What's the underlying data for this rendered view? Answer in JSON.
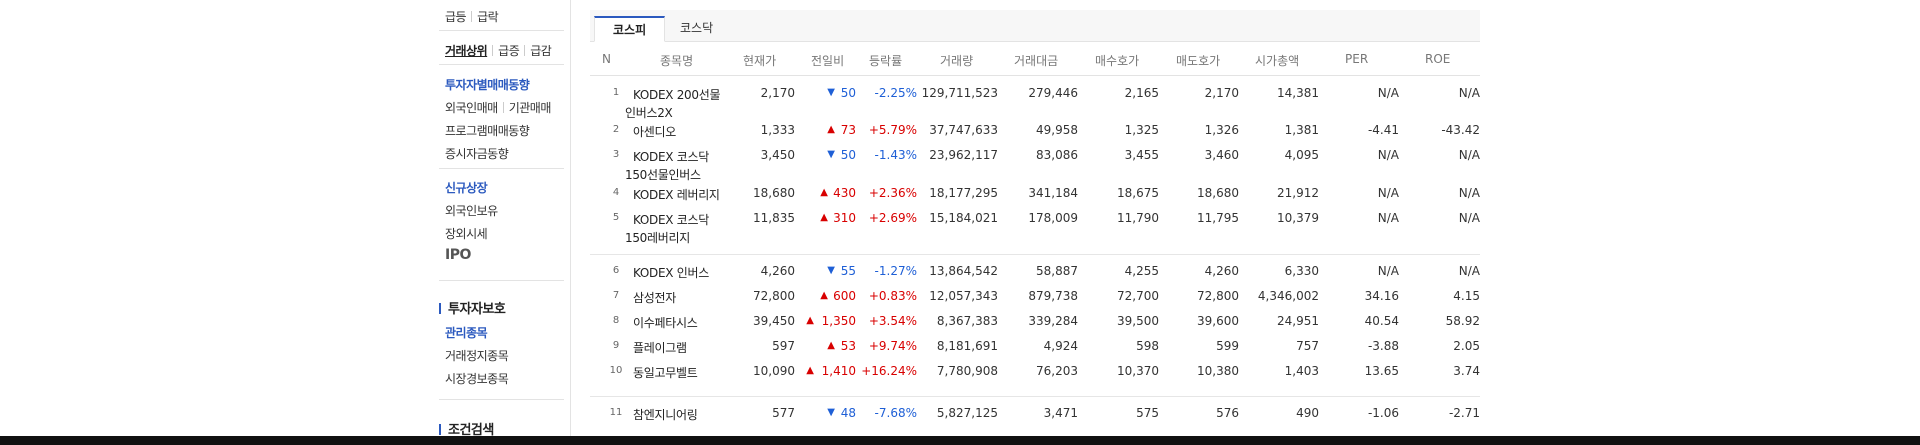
{
  "sidebar": {
    "row1": [
      "급등",
      "급락"
    ],
    "row2": [
      "거래상위",
      "급증",
      "급감"
    ],
    "investor_trend": "투자자별매매동향",
    "row4": [
      "외국인매매",
      "기관매매"
    ],
    "program_trend": "프로그램매매동향",
    "fund_trend": "증시자금동향",
    "new_listing": "신규상장",
    "foreign_holding": "외국인보유",
    "otc": "장외시세",
    "ipo": "IPO",
    "investor_protection": "투자자보호",
    "managed": "관리종목",
    "halted": "거래정지종목",
    "warning": "시장경보종목",
    "condition_search": "조건검색"
  },
  "tabs": [
    "코스피",
    "코스닥"
  ],
  "columns": [
    "N",
    "종목명",
    "현재가",
    "전일비",
    "등락률",
    "거래량",
    "거래대금",
    "매수호가",
    "매도호가",
    "시가총액",
    "PER",
    "ROE"
  ],
  "rows": [
    {
      "n": "1",
      "name": [
        "KODEX 200선물",
        "인버스2X"
      ],
      "price": "2,170",
      "dir": "down",
      "arrow": "▼",
      "change": "50",
      "rate": "-2.25%",
      "volume": "129,711,523",
      "amount": "279,446",
      "bid": "2,165",
      "ask": "2,170",
      "cap": "14,381",
      "per": "N/A",
      "roe": "N/A"
    },
    {
      "n": "2",
      "name": [
        "아센디오"
      ],
      "price": "1,333",
      "dir": "up",
      "arrow": "▲",
      "change": "73",
      "rate": "+5.79%",
      "volume": "37,747,633",
      "amount": "49,958",
      "bid": "1,325",
      "ask": "1,326",
      "cap": "1,381",
      "per": "-4.41",
      "roe": "-43.42"
    },
    {
      "n": "3",
      "name": [
        "KODEX 코스닥",
        "150선물인버스"
      ],
      "price": "3,450",
      "dir": "down",
      "arrow": "▼",
      "change": "50",
      "rate": "-1.43%",
      "volume": "23,962,117",
      "amount": "83,086",
      "bid": "3,455",
      "ask": "3,460",
      "cap": "4,095",
      "per": "N/A",
      "roe": "N/A"
    },
    {
      "n": "4",
      "name": [
        "KODEX 레버리지"
      ],
      "price": "18,680",
      "dir": "up",
      "arrow": "▲",
      "change": "430",
      "rate": "+2.36%",
      "volume": "18,177,295",
      "amount": "341,184",
      "bid": "18,675",
      "ask": "18,680",
      "cap": "21,912",
      "per": "N/A",
      "roe": "N/A"
    },
    {
      "n": "5",
      "name": [
        "KODEX 코스닥",
        "150레버리지"
      ],
      "price": "11,835",
      "dir": "up",
      "arrow": "▲",
      "change": "310",
      "rate": "+2.69%",
      "volume": "15,184,021",
      "amount": "178,009",
      "bid": "11,790",
      "ask": "11,795",
      "cap": "10,379",
      "per": "N/A",
      "roe": "N/A"
    },
    {
      "n": "6",
      "name": [
        "KODEX 인버스"
      ],
      "price": "4,260",
      "dir": "down",
      "arrow": "▼",
      "change": "55",
      "rate": "-1.27%",
      "volume": "13,864,542",
      "amount": "58,887",
      "bid": "4,255",
      "ask": "4,260",
      "cap": "6,330",
      "per": "N/A",
      "roe": "N/A"
    },
    {
      "n": "7",
      "name": [
        "삼성전자"
      ],
      "price": "72,800",
      "dir": "up",
      "arrow": "▲",
      "change": "600",
      "rate": "+0.83%",
      "volume": "12,057,343",
      "amount": "879,738",
      "bid": "72,700",
      "ask": "72,800",
      "cap": "4,346,002",
      "per": "34.16",
      "roe": "4.15"
    },
    {
      "n": "8",
      "name": [
        "이수페타시스"
      ],
      "price": "39,450",
      "dir": "up",
      "arrow": "▲",
      "change": "1,350",
      "rate": "+3.54%",
      "volume": "8,367,383",
      "amount": "339,284",
      "bid": "39,500",
      "ask": "39,600",
      "cap": "24,951",
      "per": "40.54",
      "roe": "58.92"
    },
    {
      "n": "9",
      "name": [
        "플레이그램"
      ],
      "price": "597",
      "dir": "up",
      "arrow": "▲",
      "change": "53",
      "rate": "+9.74%",
      "volume": "8,181,691",
      "amount": "4,924",
      "bid": "598",
      "ask": "599",
      "cap": "757",
      "per": "-3.88",
      "roe": "2.05"
    },
    {
      "n": "10",
      "name": [
        "동일고무벨트"
      ],
      "price": "10,090",
      "dir": "up",
      "arrow": "▲",
      "change": "1,410",
      "rate": "+16.24%",
      "volume": "7,780,908",
      "amount": "76,203",
      "bid": "10,370",
      "ask": "10,380",
      "cap": "1,403",
      "per": "13.65",
      "roe": "3.74"
    },
    {
      "n": "11",
      "name": [
        "참엔지니어링"
      ],
      "price": "577",
      "dir": "down",
      "arrow": "▼",
      "change": "48",
      "rate": "-7.68%",
      "volume": "5,827,125",
      "amount": "3,471",
      "bid": "575",
      "ask": "576",
      "cap": "490",
      "per": "-1.06",
      "roe": "-2.71"
    }
  ],
  "colors": {
    "up": "#d80000",
    "down": "#1e5fd6",
    "accent": "#2c5abf"
  }
}
